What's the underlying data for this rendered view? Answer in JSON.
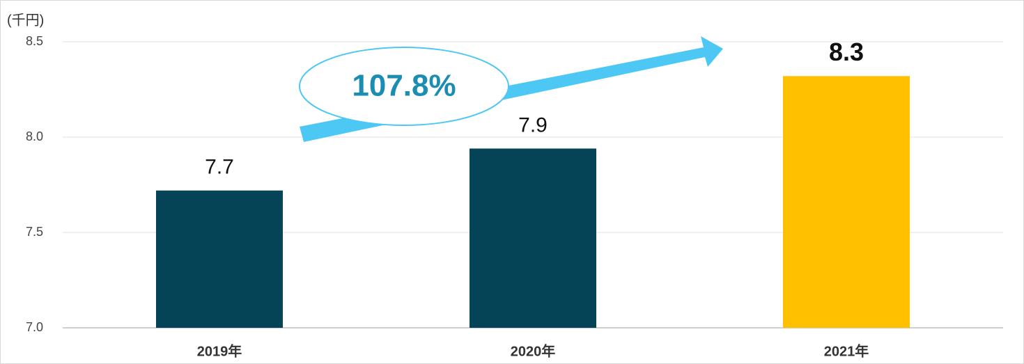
{
  "chart_data": {
    "type": "bar",
    "unit_label": "(千円)",
    "annotation": "107.8%",
    "categories": [
      "2019年",
      "2020年",
      "2021年"
    ],
    "values": [
      7.72,
      7.94,
      8.32
    ],
    "value_labels": [
      "7.7",
      "7.9",
      "8.3"
    ],
    "colors": [
      "#044456",
      "#044456",
      "#ffc000"
    ],
    "ylim": [
      7.0,
      8.5
    ],
    "yticks": [
      {
        "value": 7,
        "label": "7.0"
      },
      7.5,
      {
        "value": 8,
        "label": "8.0"
      },
      8.5
    ],
    "grid": true
  }
}
